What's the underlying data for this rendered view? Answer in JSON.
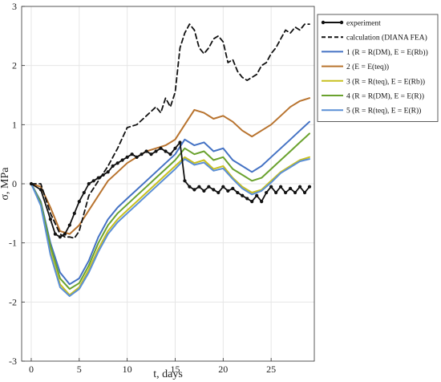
{
  "chart_data": {
    "type": "line",
    "xlabel": "t, days",
    "ylabel": "σ, MPa",
    "xlim": [
      -1,
      29.5
    ],
    "ylim": [
      -3,
      3
    ],
    "xticks": [
      0,
      5,
      10,
      15,
      20,
      25
    ],
    "yticks": [
      -3,
      -2,
      -1,
      0,
      1,
      2,
      3
    ],
    "grid": true,
    "legend_position": "top-right",
    "series": [
      {
        "name": "experiment",
        "color": "#111111",
        "style": "solid-markers",
        "x": [
          0,
          1,
          2,
          2.5,
          3,
          3.5,
          4,
          4.5,
          5,
          5.5,
          6,
          6.5,
          7,
          7.5,
          8,
          8.5,
          9,
          9.5,
          10,
          10.5,
          11,
          11.5,
          12,
          12.5,
          13,
          13.5,
          14,
          14.5,
          15,
          15.5,
          16,
          16.5,
          17,
          17.5,
          18,
          18.5,
          19,
          19.5,
          20,
          20.5,
          21,
          21.5,
          22,
          22.5,
          23,
          23.5,
          24,
          24.5,
          25,
          25.5,
          26,
          26.5,
          27,
          27.5,
          28,
          28.5,
          29
        ],
        "y": [
          0,
          -0.1,
          -0.6,
          -0.85,
          -0.9,
          -0.85,
          -0.7,
          -0.5,
          -0.3,
          -0.15,
          0,
          0.05,
          0.1,
          0.15,
          0.2,
          0.3,
          0.35,
          0.4,
          0.45,
          0.5,
          0.45,
          0.5,
          0.55,
          0.5,
          0.55,
          0.6,
          0.55,
          0.5,
          0.6,
          0.7,
          0.05,
          -0.05,
          -0.1,
          -0.05,
          -0.12,
          -0.05,
          -0.1,
          -0.15,
          -0.05,
          -0.12,
          -0.08,
          -0.15,
          -0.2,
          -0.25,
          -0.3,
          -0.2,
          -0.3,
          -0.15,
          -0.05,
          -0.15,
          -0.05,
          -0.15,
          -0.08,
          -0.15,
          -0.05,
          -0.15,
          -0.05
        ]
      },
      {
        "name": "calculation (DIANA FEA)",
        "color": "#111111",
        "style": "dashed",
        "x": [
          0,
          1,
          2,
          3,
          3.5,
          4,
          4.5,
          5,
          5.5,
          6,
          7,
          8,
          9,
          10,
          11,
          12,
          13,
          13.5,
          14,
          14.5,
          15,
          15.5,
          16,
          16.5,
          17,
          17.5,
          18,
          18.5,
          19,
          19.5,
          20,
          20.5,
          21,
          21.5,
          22,
          22.5,
          23,
          23.5,
          24,
          24.5,
          25,
          25.5,
          26,
          26.5,
          27,
          27.5,
          28,
          28.5,
          29
        ],
        "y": [
          0,
          0,
          -0.5,
          -0.85,
          -0.9,
          -0.9,
          -0.92,
          -0.8,
          -0.5,
          -0.2,
          0.05,
          0.3,
          0.6,
          0.95,
          1.0,
          1.15,
          1.3,
          1.2,
          1.45,
          1.3,
          1.55,
          2.3,
          2.55,
          2.7,
          2.6,
          2.3,
          2.2,
          2.3,
          2.45,
          2.5,
          2.4,
          2.05,
          2.1,
          1.9,
          1.8,
          1.75,
          1.8,
          1.85,
          2.0,
          2.05,
          2.2,
          2.3,
          2.45,
          2.6,
          2.55,
          2.65,
          2.6,
          2.7,
          2.7
        ]
      },
      {
        "name": "1 (R = R(DM), E = E(Rb))",
        "color": "#4472C4",
        "style": "solid",
        "x": [
          0,
          1,
          2,
          3,
          4,
          5,
          6,
          7,
          8,
          9,
          10,
          11,
          12,
          13,
          14,
          15,
          16,
          17,
          18,
          19,
          20,
          21,
          22,
          23,
          24,
          25,
          26,
          27,
          28,
          29
        ],
        "y": [
          0,
          -0.3,
          -1.0,
          -1.5,
          -1.7,
          -1.6,
          -1.3,
          -0.9,
          -0.6,
          -0.4,
          -0.25,
          -0.1,
          0.05,
          0.2,
          0.35,
          0.5,
          0.75,
          0.65,
          0.7,
          0.55,
          0.6,
          0.4,
          0.3,
          0.2,
          0.3,
          0.45,
          0.6,
          0.75,
          0.9,
          1.05
        ]
      },
      {
        "name": "2 (E = E(teq))",
        "color": "#B8732E",
        "style": "solid",
        "x": [
          0,
          1,
          2,
          3,
          4,
          5,
          6,
          7,
          8,
          9,
          10,
          11,
          12,
          13,
          14,
          15,
          16,
          17,
          18,
          19,
          20,
          21,
          22,
          23,
          24,
          25,
          26,
          27,
          28,
          29
        ],
        "y": [
          0,
          -0.05,
          -0.4,
          -0.8,
          -0.85,
          -0.7,
          -0.45,
          -0.2,
          0.05,
          0.2,
          0.35,
          0.45,
          0.55,
          0.6,
          0.65,
          0.75,
          1.0,
          1.25,
          1.2,
          1.1,
          1.15,
          1.05,
          0.9,
          0.8,
          0.9,
          1.0,
          1.15,
          1.3,
          1.4,
          1.45
        ]
      },
      {
        "name": "3 (R = R(teq), E = E(Rb))",
        "color": "#C8C020",
        "style": "solid",
        "x": [
          0,
          1,
          2,
          3,
          4,
          5,
          6,
          7,
          8,
          9,
          10,
          11,
          12,
          13,
          14,
          15,
          16,
          17,
          18,
          19,
          20,
          21,
          22,
          23,
          24,
          25,
          26,
          27,
          28,
          29
        ],
        "y": [
          0,
          -0.35,
          -1.15,
          -1.7,
          -1.88,
          -1.75,
          -1.45,
          -1.1,
          -0.8,
          -0.6,
          -0.45,
          -0.3,
          -0.15,
          0.0,
          0.15,
          0.3,
          0.45,
          0.35,
          0.4,
          0.25,
          0.3,
          0.1,
          -0.05,
          -0.15,
          -0.1,
          0.05,
          0.2,
          0.3,
          0.4,
          0.45
        ]
      },
      {
        "name": "4 (R = R(DM), E = E(R))",
        "color": "#6AA22E",
        "style": "solid",
        "x": [
          0,
          1,
          2,
          3,
          4,
          5,
          6,
          7,
          8,
          9,
          10,
          11,
          12,
          13,
          14,
          15,
          16,
          17,
          18,
          19,
          20,
          21,
          22,
          23,
          24,
          25,
          26,
          27,
          28,
          29
        ],
        "y": [
          0,
          -0.32,
          -1.05,
          -1.6,
          -1.78,
          -1.68,
          -1.38,
          -1.0,
          -0.7,
          -0.5,
          -0.35,
          -0.2,
          -0.05,
          0.1,
          0.25,
          0.4,
          0.6,
          0.5,
          0.55,
          0.4,
          0.45,
          0.25,
          0.15,
          0.05,
          0.1,
          0.25,
          0.4,
          0.55,
          0.7,
          0.85
        ]
      },
      {
        "name": "5 (R = R(teq), E = E(R))",
        "color": "#5B8FD6",
        "style": "solid",
        "x": [
          0,
          1,
          2,
          3,
          4,
          5,
          6,
          7,
          8,
          9,
          10,
          11,
          12,
          13,
          14,
          15,
          16,
          17,
          18,
          19,
          20,
          21,
          22,
          23,
          24,
          25,
          26,
          27,
          28,
          29
        ],
        "y": [
          0,
          -0.37,
          -1.2,
          -1.75,
          -1.9,
          -1.78,
          -1.5,
          -1.15,
          -0.85,
          -0.65,
          -0.5,
          -0.35,
          -0.2,
          -0.05,
          0.1,
          0.25,
          0.42,
          0.32,
          0.36,
          0.22,
          0.26,
          0.08,
          -0.08,
          -0.18,
          -0.12,
          0.02,
          0.18,
          0.28,
          0.38,
          0.42
        ]
      }
    ]
  }
}
